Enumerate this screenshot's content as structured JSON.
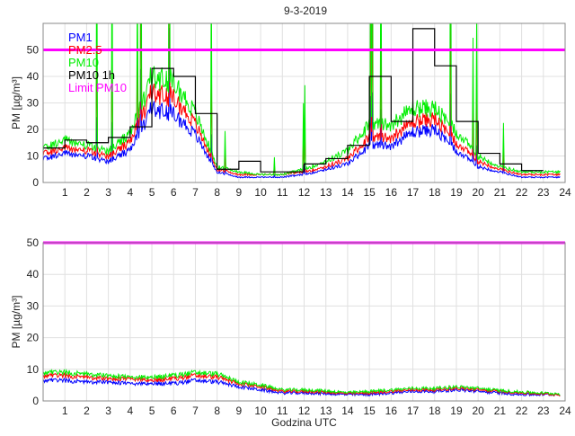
{
  "title": "9-3-2019",
  "chart_data": [
    {
      "type": "line",
      "title": "9-3-2019",
      "xlabel": "",
      "ylabel": "PM [µg/m³]",
      "xlim": [
        0,
        24
      ],
      "ylim": [
        0,
        60
      ],
      "xticks": [
        1,
        2,
        3,
        4,
        5,
        6,
        7,
        8,
        9,
        10,
        11,
        12,
        13,
        14,
        15,
        16,
        17,
        18,
        19,
        20,
        21,
        22,
        23,
        24
      ],
      "yticks": [
        0,
        10,
        20,
        30,
        40,
        50
      ],
      "grid": true,
      "legend_position": "top-left",
      "limit": {
        "name": "Limit PM10",
        "value": 50,
        "color": "#ff00ff"
      },
      "hours": [
        0,
        1,
        2,
        3,
        4,
        5,
        6,
        7,
        8,
        9,
        10,
        11,
        12,
        13,
        14,
        15,
        16,
        17,
        18,
        19,
        20,
        21,
        22,
        23
      ],
      "series": [
        {
          "name": "PM1",
          "color": "#0000ff",
          "values": [
            9,
            11,
            10,
            8,
            12,
            28,
            26,
            18,
            4,
            2,
            2,
            2,
            3,
            5,
            7,
            14,
            14,
            19,
            20,
            12,
            6,
            4,
            2,
            2
          ]
        },
        {
          "name": "PM2.5",
          "color": "#ff0000",
          "values": [
            11,
            13,
            12,
            10,
            15,
            34,
            32,
            22,
            5,
            3,
            3,
            3,
            4,
            6,
            9,
            17,
            17,
            23,
            24,
            15,
            8,
            5,
            3,
            3
          ]
        },
        {
          "name": "PM10",
          "color": "#00ee00",
          "values": [
            13,
            16,
            14,
            12,
            18,
            40,
            38,
            26,
            6,
            4,
            3,
            3,
            5,
            8,
            12,
            22,
            22,
            28,
            28,
            19,
            10,
            6,
            4,
            4
          ]
        },
        {
          "name": "PM10 1h",
          "color": "#000000",
          "step": true,
          "values": [
            13,
            16,
            15,
            17,
            21,
            43,
            40,
            26,
            5,
            8,
            4,
            4,
            7,
            9,
            14,
            40,
            23,
            58,
            44,
            23,
            11,
            7,
            4.5
          ]
        }
      ]
    },
    {
      "type": "line",
      "xlabel": "Godzina UTC",
      "ylabel": "PM [µg/m³]",
      "xlim": [
        0,
        24
      ],
      "ylim": [
        0,
        50
      ],
      "xticks": [
        1,
        2,
        3,
        4,
        5,
        6,
        7,
        8,
        9,
        10,
        11,
        12,
        13,
        14,
        15,
        16,
        17,
        18,
        19,
        20,
        21,
        22,
        23,
        24
      ],
      "yticks": [
        0,
        10,
        20,
        30,
        40,
        50
      ],
      "grid": true,
      "limit": {
        "name": "Limit PM10",
        "value": 50,
        "color": "#ff00ff"
      },
      "hours": [
        0,
        1,
        2,
        3,
        4,
        5,
        6,
        7,
        8,
        9,
        10,
        11,
        12,
        13,
        14,
        15,
        16,
        17,
        18,
        19,
        20,
        21,
        22,
        23
      ],
      "series": [
        {
          "name": "PM1",
          "color": "#0000ff",
          "values": [
            6.5,
            6.5,
            6,
            6,
            5.5,
            5.5,
            5.5,
            6.5,
            6,
            4.5,
            3.5,
            2.5,
            2.5,
            2.3,
            2,
            2,
            2.5,
            3,
            3,
            3.5,
            3,
            2.5,
            2,
            2
          ]
        },
        {
          "name": "PM2.5",
          "color": "#ff0000",
          "values": [
            8,
            8,
            7.5,
            7,
            7,
            6.5,
            7,
            8,
            7.5,
            5.5,
            4.5,
            3,
            3,
            2.8,
            2.3,
            2.5,
            3,
            3.5,
            3.5,
            4,
            3.5,
            3,
            2.5,
            2.2
          ]
        },
        {
          "name": "PM10",
          "color": "#00ee00",
          "values": [
            9,
            9,
            8.5,
            8,
            7.5,
            7.5,
            8,
            9,
            8.5,
            6,
            5,
            3.5,
            3.5,
            3.2,
            2.6,
            3,
            3.5,
            4,
            4,
            4.5,
            4,
            3.3,
            2.8,
            2.5
          ]
        }
      ]
    }
  ]
}
